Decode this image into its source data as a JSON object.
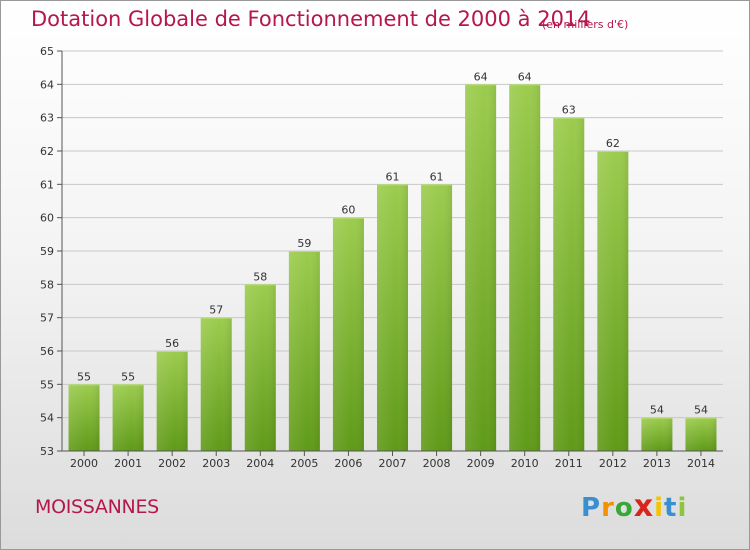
{
  "title": "Dotation Globale de Fonctionnement de 2000 à 2014",
  "subtitle": "(en milliers d'€)",
  "place": "MOISSANNES",
  "logo": {
    "letters": [
      "P",
      "r",
      "o",
      "x",
      "i",
      "t",
      "i"
    ],
    "colors": [
      "#3a8fd1",
      "#f39200",
      "#3aa635",
      "#d7261e",
      "#f4c400",
      "#3a8fd1",
      "#8cc63f"
    ]
  },
  "colors": {
    "title": "#b5174d",
    "bar_light": "#9ccc4e",
    "bar_dark": "#5f9a18",
    "axis": "#555555",
    "grid": "#c8c8c8"
  },
  "chart_data": {
    "type": "bar",
    "title": "Dotation Globale de Fonctionnement de 2000 à 2014",
    "xlabel": "",
    "ylabel": "",
    "ylim": [
      53,
      65
    ],
    "yticks": [
      53,
      54,
      55,
      56,
      57,
      58,
      59,
      60,
      61,
      62,
      63,
      64,
      65
    ],
    "categories": [
      "2000",
      "2001",
      "2002",
      "2003",
      "2004",
      "2005",
      "2006",
      "2007",
      "2008",
      "2009",
      "2010",
      "2011",
      "2012",
      "2013",
      "2014"
    ],
    "values": [
      55,
      55,
      56,
      57,
      58,
      59,
      60,
      61,
      61,
      64,
      64,
      63,
      62,
      54,
      54
    ]
  }
}
